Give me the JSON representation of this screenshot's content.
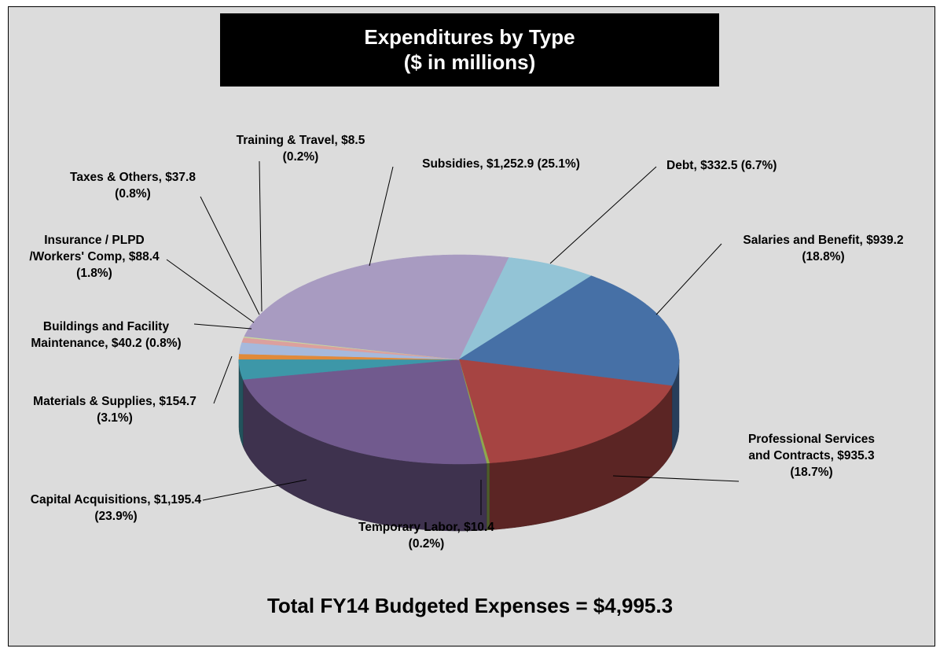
{
  "chart_data": {
    "type": "pie3d",
    "title": "Expenditures by Type",
    "subtitle": "($ in millions)",
    "annotation": "Total FY14 Budgeted Expenses = $4,995.3",
    "categories": [
      "Debt,",
      "Salaries and Benefit,",
      "Professional Services and Contracts,",
      "Temporary Labor,",
      "Capital Acquisitions,",
      "Materials & Supplies,",
      "Buildings and Facility Maintenance,",
      "Insurance / PLPD /Workers' Comp,",
      "Taxes & Others,",
      "Training & Travel,",
      "Subsidies,"
    ],
    "values": [
      332.5,
      939.2,
      935.3,
      10.4,
      1195.4,
      154.7,
      40.2,
      88.4,
      37.8,
      8.5,
      1252.9
    ],
    "value_labels": [
      "$332.5",
      "$939.2",
      "$935.3",
      "$10.4",
      "$1,195.4",
      "$154.7",
      "$40.2",
      "$88.4",
      "$37.8",
      "$8.5",
      "$1,252.9"
    ],
    "percents": [
      6.7,
      18.8,
      18.7,
      0.2,
      23.9,
      3.1,
      0.8,
      1.8,
      0.8,
      0.2,
      25.1
    ],
    "percent_labels": [
      "(6.7%)",
      "(18.8%)",
      "(18.7%)",
      "(0.2%)",
      "(23.9%)",
      "(3.1%)",
      "(0.8%)",
      "(1.8%)",
      "(0.8%)",
      "(0.2%)",
      "(25.1%)"
    ],
    "colors": [
      "#93c4d6",
      "#4670a6",
      "#a64442",
      "#8ea84c",
      "#715a8e",
      "#3d97a8",
      "#e08a3a",
      "#a6b9dc",
      "#dba09e",
      "#c7d7a1",
      "#a89bc1"
    ]
  }
}
